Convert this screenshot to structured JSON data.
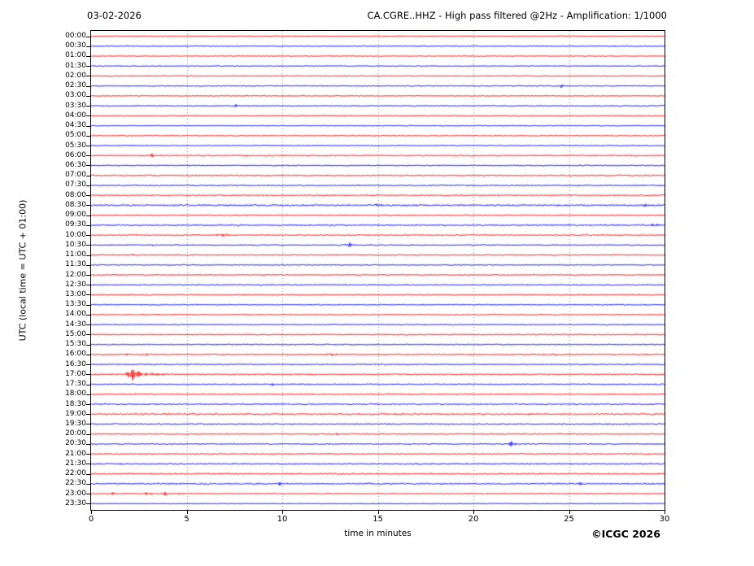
{
  "header": {
    "date": "03-02-2026",
    "title": "CA.CGRE..HHZ - High pass filtered @2Hz - Amplification: 1/1000"
  },
  "axes": {
    "y_label": "UTC (local time = UTC + 01:00)",
    "x_label": "time in minutes",
    "x_ticks": [
      0,
      5,
      10,
      15,
      20,
      25,
      30
    ],
    "x_range_minutes": [
      0,
      30
    ],
    "grid_minutes": [
      5,
      10,
      15,
      20,
      25
    ]
  },
  "footer": {
    "copyright": "©ICGC 2026"
  },
  "colors": {
    "hour_trace": "#ff0000",
    "half_hour_trace": "#0000ff",
    "grid": "#666666",
    "frame": "#000000",
    "background": "#ffffff"
  },
  "chart_data": {
    "type": "line",
    "title": "CA.CGRE..HHZ - High pass filtered @2Hz - Amplification: 1/1000",
    "subtitle_date": "03-02-2026",
    "xlabel": "time in minutes",
    "ylabel": "UTC (local time = UTC + 01:00)",
    "xlim": [
      0,
      30
    ],
    "grid": "dotted-vertical-every-5-min",
    "legend_position": "none",
    "row_description": "48 half-hour seismogram traces, red on the hour, blue on the half hour; events listed as minute-of-row, peak amplitude (px), width sigma (min)",
    "rows": [
      {
        "label": "00:00",
        "color": "red",
        "noise": 0.5,
        "events": []
      },
      {
        "label": "00:30",
        "color": "blue",
        "noise": 0.55,
        "events": [
          {
            "min": 27.5,
            "amp": 1.2,
            "w": 0.12
          }
        ]
      },
      {
        "label": "01:00",
        "color": "red",
        "noise": 0.5,
        "events": [
          {
            "min": 1.0,
            "amp": 1.6,
            "w": 0.07
          }
        ]
      },
      {
        "label": "01:30",
        "color": "blue",
        "noise": 0.5,
        "events": []
      },
      {
        "label": "02:00",
        "color": "red",
        "noise": 0.55,
        "events": [
          {
            "min": 3.9,
            "amp": 1.0,
            "w": 0.06
          }
        ]
      },
      {
        "label": "02:30",
        "color": "blue",
        "noise": 0.55,
        "events": [
          {
            "min": 24.6,
            "amp": 2.2,
            "w": 0.1
          }
        ]
      },
      {
        "label": "03:00",
        "color": "red",
        "noise": 0.5,
        "events": []
      },
      {
        "label": "03:30",
        "color": "blue",
        "noise": 0.5,
        "events": [
          {
            "min": 7.6,
            "amp": 2.2,
            "w": 0.07
          }
        ]
      },
      {
        "label": "04:00",
        "color": "red",
        "noise": 0.55,
        "events": []
      },
      {
        "label": "04:30",
        "color": "blue",
        "noise": 0.5,
        "events": []
      },
      {
        "label": "05:00",
        "color": "red",
        "noise": 0.6,
        "events": []
      },
      {
        "label": "05:30",
        "color": "blue",
        "noise": 0.55,
        "events": []
      },
      {
        "label": "06:00",
        "color": "red",
        "noise": 0.7,
        "events": [
          {
            "min": 3.2,
            "amp": 2.8,
            "w": 0.12
          },
          {
            "min": 8.1,
            "amp": 1.6,
            "w": 0.09
          }
        ]
      },
      {
        "label": "06:30",
        "color": "blue",
        "noise": 0.6,
        "events": []
      },
      {
        "label": "07:00",
        "color": "red",
        "noise": 0.65,
        "events": []
      },
      {
        "label": "07:30",
        "color": "blue",
        "noise": 0.6,
        "events": []
      },
      {
        "label": "08:00",
        "color": "red",
        "noise": 0.7,
        "events": []
      },
      {
        "label": "08:30",
        "color": "blue",
        "noise": 0.9,
        "events": [
          {
            "min": 15.1,
            "amp": 1.2,
            "w": 0.25
          },
          {
            "min": 29.0,
            "amp": 1.6,
            "w": 0.15
          }
        ]
      },
      {
        "label": "09:00",
        "color": "red",
        "noise": 0.6,
        "events": []
      },
      {
        "label": "09:30",
        "color": "blue",
        "noise": 0.8,
        "events": [
          {
            "min": 29.5,
            "amp": 1.2,
            "w": 0.3
          }
        ]
      },
      {
        "label": "10:00",
        "color": "red",
        "noise": 0.7,
        "events": [
          {
            "min": 6.9,
            "amp": 1.5,
            "w": 0.3
          },
          {
            "min": 9.3,
            "amp": 1.5,
            "w": 0.12
          }
        ]
      },
      {
        "label": "10:30",
        "color": "blue",
        "noise": 0.6,
        "events": [
          {
            "min": 3.2,
            "amp": 1.1,
            "w": 0.08
          },
          {
            "min": 13.5,
            "amp": 3.0,
            "w": 0.13
          }
        ]
      },
      {
        "label": "11:00",
        "color": "red",
        "noise": 0.6,
        "events": [
          {
            "min": 2.3,
            "amp": 1.8,
            "w": 0.12
          }
        ]
      },
      {
        "label": "11:30",
        "color": "blue",
        "noise": 0.55,
        "events": []
      },
      {
        "label": "12:00",
        "color": "red",
        "noise": 0.6,
        "events": []
      },
      {
        "label": "12:30",
        "color": "blue",
        "noise": 0.6,
        "events": []
      },
      {
        "label": "13:00",
        "color": "red",
        "noise": 0.65,
        "events": []
      },
      {
        "label": "13:30",
        "color": "blue",
        "noise": 0.6,
        "events": []
      },
      {
        "label": "14:00",
        "color": "red",
        "noise": 0.65,
        "events": []
      },
      {
        "label": "14:30",
        "color": "blue",
        "noise": 0.6,
        "events": []
      },
      {
        "label": "15:00",
        "color": "red",
        "noise": 0.65,
        "events": []
      },
      {
        "label": "15:30",
        "color": "blue",
        "noise": 0.6,
        "events": []
      },
      {
        "label": "16:00",
        "color": "red",
        "noise": 0.7,
        "events": [
          {
            "min": 1.9,
            "amp": 1.8,
            "w": 0.08
          },
          {
            "min": 3.0,
            "amp": 2.2,
            "w": 0.08
          },
          {
            "min": 12.5,
            "amp": 1.5,
            "w": 0.25
          },
          {
            "min": 24.2,
            "amp": 1.6,
            "w": 0.1
          }
        ]
      },
      {
        "label": "16:30",
        "color": "blue",
        "noise": 0.65,
        "events": []
      },
      {
        "label": "17:00",
        "color": "red",
        "noise": 0.7,
        "events": [
          {
            "min": 2.2,
            "amp": 8.0,
            "w": 0.22
          },
          {
            "min": 3.1,
            "amp": 1.8,
            "w": 0.6
          }
        ]
      },
      {
        "label": "17:30",
        "color": "blue",
        "noise": 0.65,
        "events": [
          {
            "min": 9.5,
            "amp": 2.2,
            "w": 0.09
          }
        ]
      },
      {
        "label": "18:00",
        "color": "red",
        "noise": 0.7,
        "events": []
      },
      {
        "label": "18:30",
        "color": "blue",
        "noise": 0.75,
        "events": []
      },
      {
        "label": "19:00",
        "color": "red",
        "noise": 0.85,
        "events": []
      },
      {
        "label": "19:30",
        "color": "blue",
        "noise": 0.7,
        "events": []
      },
      {
        "label": "20:00",
        "color": "red",
        "noise": 0.65,
        "events": [
          {
            "min": 12.9,
            "amp": 1.3,
            "w": 0.08
          }
        ]
      },
      {
        "label": "20:30",
        "color": "blue",
        "noise": 0.6,
        "events": [
          {
            "min": 22.0,
            "amp": 4.0,
            "w": 0.13
          }
        ]
      },
      {
        "label": "21:00",
        "color": "red",
        "noise": 0.65,
        "events": [
          {
            "min": 26.5,
            "amp": 1.6,
            "w": 0.07
          }
        ]
      },
      {
        "label": "21:30",
        "color": "blue",
        "noise": 0.7,
        "events": []
      },
      {
        "label": "22:00",
        "color": "red",
        "noise": 0.75,
        "events": []
      },
      {
        "label": "22:30",
        "color": "blue",
        "noise": 0.8,
        "events": [
          {
            "min": 9.8,
            "amp": 2.5,
            "w": 0.1
          },
          {
            "min": 25.6,
            "amp": 2.0,
            "w": 0.09
          }
        ]
      },
      {
        "label": "23:00",
        "color": "red",
        "noise": 0.6,
        "events": [
          {
            "min": 1.1,
            "amp": 1.5,
            "w": 0.15
          },
          {
            "min": 3.0,
            "amp": 2.5,
            "w": 0.13
          },
          {
            "min": 3.9,
            "amp": 2.0,
            "w": 0.1
          },
          {
            "min": 4.7,
            "amp": 2.0,
            "w": 0.12
          }
        ]
      },
      {
        "label": "23:30",
        "color": "blue",
        "noise": 0.45,
        "events": []
      }
    ]
  }
}
